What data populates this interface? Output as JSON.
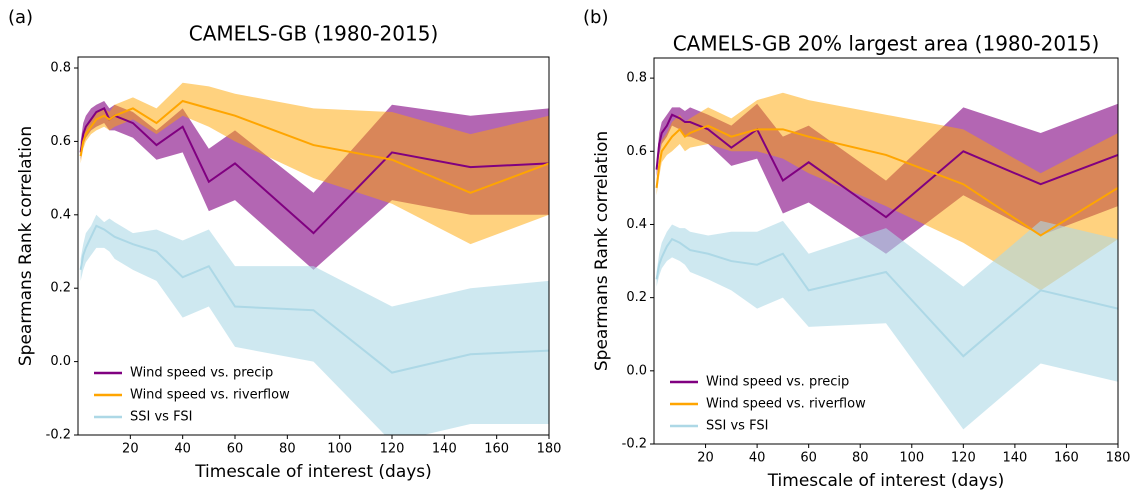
{
  "chart_data": [
    {
      "type": "line",
      "panel_label": "(a)",
      "title": "CAMELS-GB (1980-2015)",
      "x_label": "Timescale of interest (days)",
      "y_label": "Spearmans Rank correlation",
      "x": [
        1,
        2,
        3,
        5,
        7,
        10,
        12,
        14,
        21,
        30,
        40,
        50,
        60,
        90,
        120,
        150,
        180
      ],
      "xlim": [
        0,
        180
      ],
      "ylim": [
        -0.2,
        0.83
      ],
      "xticks": [
        20,
        40,
        60,
        80,
        100,
        120,
        140,
        160,
        180
      ],
      "yticks": [
        -0.2,
        {
          "value": 0,
          "label": "0.0"
        },
        0.2,
        0.4,
        0.6,
        0.8
      ],
      "legend": "lower left",
      "series": [
        {
          "name": "Wind speed vs. precip",
          "color": "#800080",
          "values": [
            0.57,
            0.62,
            0.64,
            0.66,
            0.68,
            0.69,
            0.66,
            0.67,
            0.65,
            0.59,
            0.64,
            0.49,
            0.54,
            0.35,
            0.57,
            0.53,
            0.54
          ],
          "lower": [
            0.55,
            0.59,
            0.61,
            0.63,
            0.64,
            0.65,
            0.63,
            0.63,
            0.61,
            0.55,
            0.57,
            0.41,
            0.44,
            0.25,
            0.44,
            0.4,
            0.4
          ],
          "upper": [
            0.6,
            0.65,
            0.67,
            0.69,
            0.7,
            0.71,
            0.69,
            0.7,
            0.68,
            0.63,
            0.69,
            0.58,
            0.63,
            0.46,
            0.7,
            0.67,
            0.69
          ]
        },
        {
          "name": "Wind speed vs. riverflow",
          "color": "#ffa500",
          "values": [
            0.56,
            0.6,
            0.62,
            0.64,
            0.66,
            0.67,
            0.66,
            0.67,
            0.69,
            0.65,
            0.71,
            0.69,
            0.67,
            0.59,
            0.55,
            0.46,
            0.54
          ],
          "lower": [
            0.54,
            0.58,
            0.6,
            0.62,
            0.63,
            0.64,
            0.63,
            0.64,
            0.66,
            0.62,
            0.67,
            0.64,
            0.6,
            0.5,
            0.43,
            0.32,
            0.4
          ],
          "upper": [
            0.58,
            0.62,
            0.64,
            0.66,
            0.68,
            0.69,
            0.68,
            0.7,
            0.72,
            0.69,
            0.76,
            0.75,
            0.73,
            0.69,
            0.68,
            0.62,
            0.67
          ]
        },
        {
          "name": "SSI vs FSI",
          "color": "#add8e6",
          "values": [
            0.25,
            0.29,
            0.31,
            0.34,
            0.37,
            0.36,
            0.35,
            0.34,
            0.32,
            0.3,
            0.23,
            0.26,
            0.15,
            0.14,
            -0.03,
            0.02,
            0.03
          ],
          "lower": [
            0.22,
            0.25,
            0.27,
            0.29,
            0.31,
            0.31,
            0.3,
            0.28,
            0.25,
            0.22,
            0.12,
            0.15,
            0.04,
            0.0,
            -0.22,
            -0.17,
            -0.17
          ],
          "upper": [
            0.28,
            0.32,
            0.35,
            0.37,
            0.4,
            0.38,
            0.39,
            0.38,
            0.35,
            0.36,
            0.33,
            0.36,
            0.26,
            0.26,
            0.15,
            0.2,
            0.22
          ]
        }
      ]
    },
    {
      "type": "line",
      "panel_label": "(b)",
      "title": "CAMELS-GB 20% largest area (1980-2015)",
      "x_label": "Timescale of interest (days)",
      "y_label": "Spearmans Rank correlation",
      "x": [
        1,
        2,
        3,
        5,
        7,
        10,
        12,
        14,
        21,
        30,
        40,
        50,
        60,
        90,
        120,
        150,
        180
      ],
      "xlim": [
        0,
        180
      ],
      "ylim": [
        -0.2,
        0.855
      ],
      "xticks": [
        20,
        40,
        60,
        80,
        100,
        120,
        140,
        160,
        180
      ],
      "yticks": [
        -0.2,
        {
          "value": 0,
          "label": "0.0"
        },
        0.2,
        0.4,
        0.6,
        0.8
      ],
      "legend": "lower left",
      "series": [
        {
          "name": "Wind speed vs. precip",
          "color": "#800080",
          "values": [
            0.55,
            0.62,
            0.65,
            0.67,
            0.7,
            0.69,
            0.68,
            0.68,
            0.66,
            0.61,
            0.66,
            0.52,
            0.57,
            0.42,
            0.6,
            0.51,
            0.59
          ],
          "lower": [
            0.53,
            0.59,
            0.62,
            0.64,
            0.67,
            0.66,
            0.64,
            0.64,
            0.62,
            0.56,
            0.58,
            0.43,
            0.46,
            0.32,
            0.48,
            0.37,
            0.45
          ],
          "upper": [
            0.57,
            0.65,
            0.68,
            0.7,
            0.72,
            0.72,
            0.71,
            0.72,
            0.7,
            0.67,
            0.73,
            0.64,
            0.67,
            0.52,
            0.72,
            0.65,
            0.73
          ]
        },
        {
          "name": "Wind speed vs. riverflow",
          "color": "#ffa500",
          "values": [
            0.5,
            0.56,
            0.6,
            0.62,
            0.64,
            0.66,
            0.64,
            0.65,
            0.67,
            0.64,
            0.66,
            0.66,
            0.64,
            0.59,
            0.51,
            0.37,
            0.5
          ],
          "lower": [
            0.48,
            0.53,
            0.57,
            0.59,
            0.6,
            0.62,
            0.6,
            0.61,
            0.62,
            0.6,
            0.6,
            0.58,
            0.54,
            0.45,
            0.35,
            0.22,
            0.36
          ],
          "upper": [
            0.52,
            0.59,
            0.63,
            0.65,
            0.68,
            0.7,
            0.68,
            0.69,
            0.72,
            0.69,
            0.74,
            0.76,
            0.74,
            0.7,
            0.66,
            0.54,
            0.65
          ]
        },
        {
          "name": "SSI vs FSI",
          "color": "#add8e6",
          "values": [
            0.25,
            0.29,
            0.31,
            0.34,
            0.36,
            0.35,
            0.34,
            0.33,
            0.32,
            0.3,
            0.29,
            0.32,
            0.22,
            0.27,
            0.04,
            0.22,
            0.17
          ],
          "lower": [
            0.23,
            0.26,
            0.28,
            0.3,
            0.31,
            0.3,
            0.29,
            0.27,
            0.25,
            0.22,
            0.17,
            0.2,
            0.12,
            0.13,
            -0.16,
            0.02,
            -0.03
          ],
          "upper": [
            0.27,
            0.32,
            0.35,
            0.38,
            0.4,
            0.39,
            0.39,
            0.38,
            0.37,
            0.38,
            0.38,
            0.41,
            0.32,
            0.39,
            0.23,
            0.41,
            0.36
          ]
        }
      ]
    }
  ]
}
